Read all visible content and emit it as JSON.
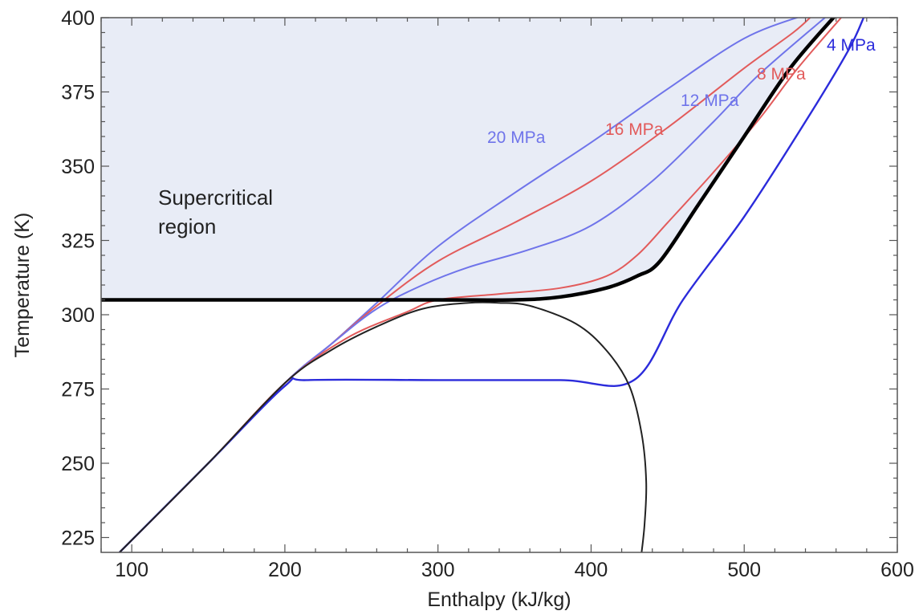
{
  "chart_data": {
    "type": "line",
    "title": "",
    "xlabel": "Enthalpy (kJ/kg)",
    "ylabel": "Temperature (K)",
    "xlim": [
      80,
      600
    ],
    "ylim": [
      220,
      400
    ],
    "xticks": [
      100,
      200,
      300,
      400,
      500,
      600
    ],
    "yticks": [
      225,
      250,
      275,
      300,
      325,
      350,
      375,
      400
    ],
    "annotations": [
      {
        "text_line1": "Supercritical",
        "text_line2": "region"
      }
    ],
    "shaded_region_color": "#e8ecf6",
    "series": [
      {
        "name": "20 MPa",
        "color": "#6f74ea",
        "x": [
          92,
          150,
          200,
          230,
          260,
          300,
          350,
          400,
          450,
          500,
          540
        ],
        "y": [
          220,
          250,
          277,
          290,
          304,
          323,
          341,
          358,
          376,
          393,
          401
        ]
      },
      {
        "name": "16 MPa",
        "color": "#e25b5b",
        "x": [
          92,
          150,
          200,
          230,
          260,
          300,
          350,
          400,
          450,
          500,
          532,
          545
        ],
        "y": [
          220,
          250,
          277,
          290,
          303,
          318,
          331,
          345,
          363,
          383,
          395,
          401
        ]
      },
      {
        "name": "12 MPa",
        "color": "#6f74ea",
        "x": [
          92,
          150,
          200,
          230,
          260,
          290,
          320,
          360,
          400,
          440,
          480,
          510,
          555
        ],
        "y": [
          220,
          250,
          277,
          290,
          302,
          310,
          316,
          322,
          330,
          345,
          365,
          381,
          401
        ]
      },
      {
        "name": "8 MPa",
        "color": "#e25b5b",
        "x": [
          92,
          150,
          200,
          240,
          280,
          300,
          340,
          380,
          410,
          430,
          450,
          480,
          510,
          535,
          565
        ],
        "y": [
          220,
          250,
          277,
          292,
          301,
          305,
          307,
          309,
          313,
          320,
          331,
          348,
          366,
          383,
          401
        ]
      },
      {
        "name": "4 MPa",
        "color": "#2b2bdb",
        "x": [
          92,
          150,
          200,
          215,
          300,
          380,
          428,
          460,
          500,
          540,
          568,
          578
        ],
        "y": [
          220,
          250,
          276,
          278,
          278,
          278,
          278,
          305,
          333,
          365,
          389,
          400
        ]
      }
    ],
    "saturation_dome": {
      "color": "#222222",
      "x": [
        92,
        150,
        200,
        230,
        260,
        290,
        320,
        340,
        360,
        390,
        410,
        425,
        433,
        436,
        435,
        433
      ],
      "y": [
        220,
        250,
        277,
        288,
        296,
        302,
        304,
        304,
        303,
        297,
        288,
        276,
        260,
        244,
        230,
        220
      ]
    },
    "supercritical_boundary": {
      "color": "#000000",
      "x": [
        80,
        200,
        300,
        350,
        380,
        410,
        430,
        445,
        470,
        500,
        530,
        560
      ],
      "y": [
        305,
        305,
        305,
        305,
        306,
        309,
        313,
        318,
        337,
        360,
        383,
        401
      ]
    }
  }
}
